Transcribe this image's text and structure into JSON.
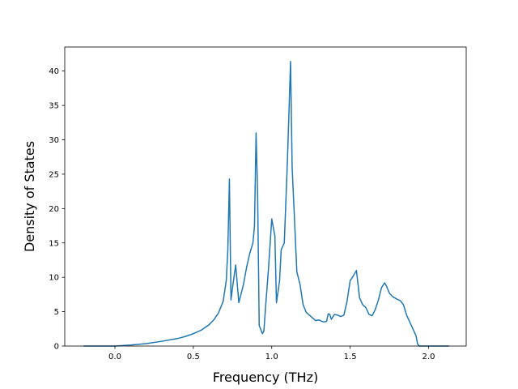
{
  "chart_data": {
    "type": "line",
    "title": "",
    "xlabel": "Frequency (THz)",
    "ylabel": "Density of States",
    "xlim": [
      -0.32,
      2.24
    ],
    "ylim": [
      0,
      43.5
    ],
    "xticks": [
      0.0,
      0.5,
      1.0,
      1.5,
      2.0
    ],
    "xtick_labels": [
      "0.0",
      "0.5",
      "1.0",
      "1.5",
      "2.0"
    ],
    "yticks": [
      0,
      5,
      10,
      15,
      20,
      25,
      30,
      35,
      40
    ],
    "ytick_labels": [
      "0",
      "5",
      "10",
      "15",
      "20",
      "25",
      "30",
      "35",
      "40"
    ],
    "grid": false,
    "series": [
      {
        "color": "#1f77b4",
        "x": [
          -0.2,
          -0.1,
          0.0,
          0.1,
          0.2,
          0.3,
          0.4,
          0.45,
          0.5,
          0.55,
          0.6,
          0.63,
          0.66,
          0.69,
          0.71,
          0.72,
          0.73,
          0.74,
          0.75,
          0.77,
          0.79,
          0.8,
          0.82,
          0.84,
          0.86,
          0.88,
          0.89,
          0.9,
          0.91,
          0.92,
          0.94,
          0.95,
          0.96,
          0.98,
          1.0,
          1.02,
          1.03,
          1.05,
          1.06,
          1.08,
          1.1,
          1.12,
          1.13,
          1.14,
          1.16,
          1.18,
          1.2,
          1.22,
          1.25,
          1.28,
          1.3,
          1.33,
          1.35,
          1.36,
          1.37,
          1.38,
          1.4,
          1.42,
          1.44,
          1.46,
          1.48,
          1.5,
          1.52,
          1.54,
          1.56,
          1.58,
          1.6,
          1.62,
          1.64,
          1.66,
          1.68,
          1.7,
          1.72,
          1.73,
          1.75,
          1.77,
          1.8,
          1.82,
          1.84,
          1.86,
          1.88,
          1.9,
          1.92,
          1.93,
          1.94,
          1.96,
          2.0,
          2.1,
          2.13
        ],
        "y": [
          0.0,
          0.0,
          0.0,
          0.15,
          0.35,
          0.7,
          1.1,
          1.4,
          1.8,
          2.3,
          3.1,
          3.8,
          4.8,
          6.5,
          9.5,
          14.0,
          24.3,
          6.7,
          8.5,
          11.8,
          6.3,
          7.2,
          9.0,
          11.5,
          13.5,
          15.0,
          17.5,
          31.0,
          22.0,
          3.0,
          1.8,
          2.2,
          5.5,
          11.5,
          18.5,
          16.0,
          6.3,
          9.5,
          14.0,
          15.0,
          27.0,
          41.4,
          26.0,
          21.0,
          10.8,
          9.0,
          6.0,
          4.9,
          4.3,
          3.7,
          3.8,
          3.5,
          3.6,
          4.7,
          4.6,
          3.9,
          4.6,
          4.5,
          4.3,
          4.5,
          6.5,
          9.5,
          10.2,
          11.0,
          7.0,
          6.0,
          5.6,
          4.6,
          4.4,
          5.3,
          6.7,
          8.5,
          9.2,
          8.8,
          7.7,
          7.2,
          6.8,
          6.6,
          6.0,
          4.5,
          3.5,
          2.5,
          1.5,
          0.3,
          0.0,
          0.0,
          0.0,
          0.0,
          0.0
        ]
      }
    ]
  }
}
